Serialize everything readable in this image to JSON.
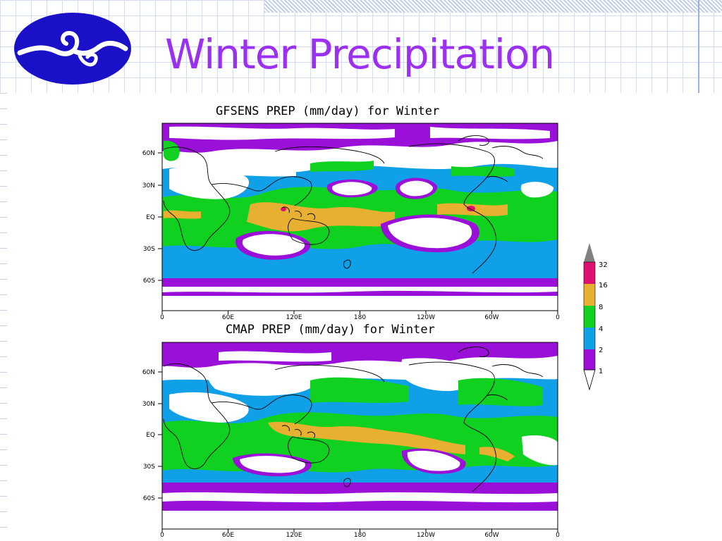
{
  "slide": {
    "title": "Winter Precipitation"
  },
  "colors": {
    "title": "#9b30f0",
    "logo_fill": "#1a10c8",
    "bin_1": "#9b10d8",
    "bin_2": "#10a0e8",
    "bin_4": "#10d020",
    "bin_8": "#e8b030",
    "bin_16": "#e01070",
    "bin_32": "#808080"
  },
  "panels": [
    {
      "id": "gfsens",
      "title": "GFSENS PREP (mm/day) for Winter"
    },
    {
      "id": "cmap",
      "title": "CMAP PREP (mm/day) for Winter"
    }
  ],
  "axes": {
    "lat_labels": [
      "60N",
      "30N",
      "EQ",
      "30S",
      "60S"
    ],
    "lon_labels": [
      "0",
      "60E",
      "120E",
      "180",
      "120W",
      "60W",
      "0"
    ]
  },
  "legend": {
    "labels": [
      "32",
      "16",
      "8",
      "4",
      "2",
      "1"
    ]
  }
}
